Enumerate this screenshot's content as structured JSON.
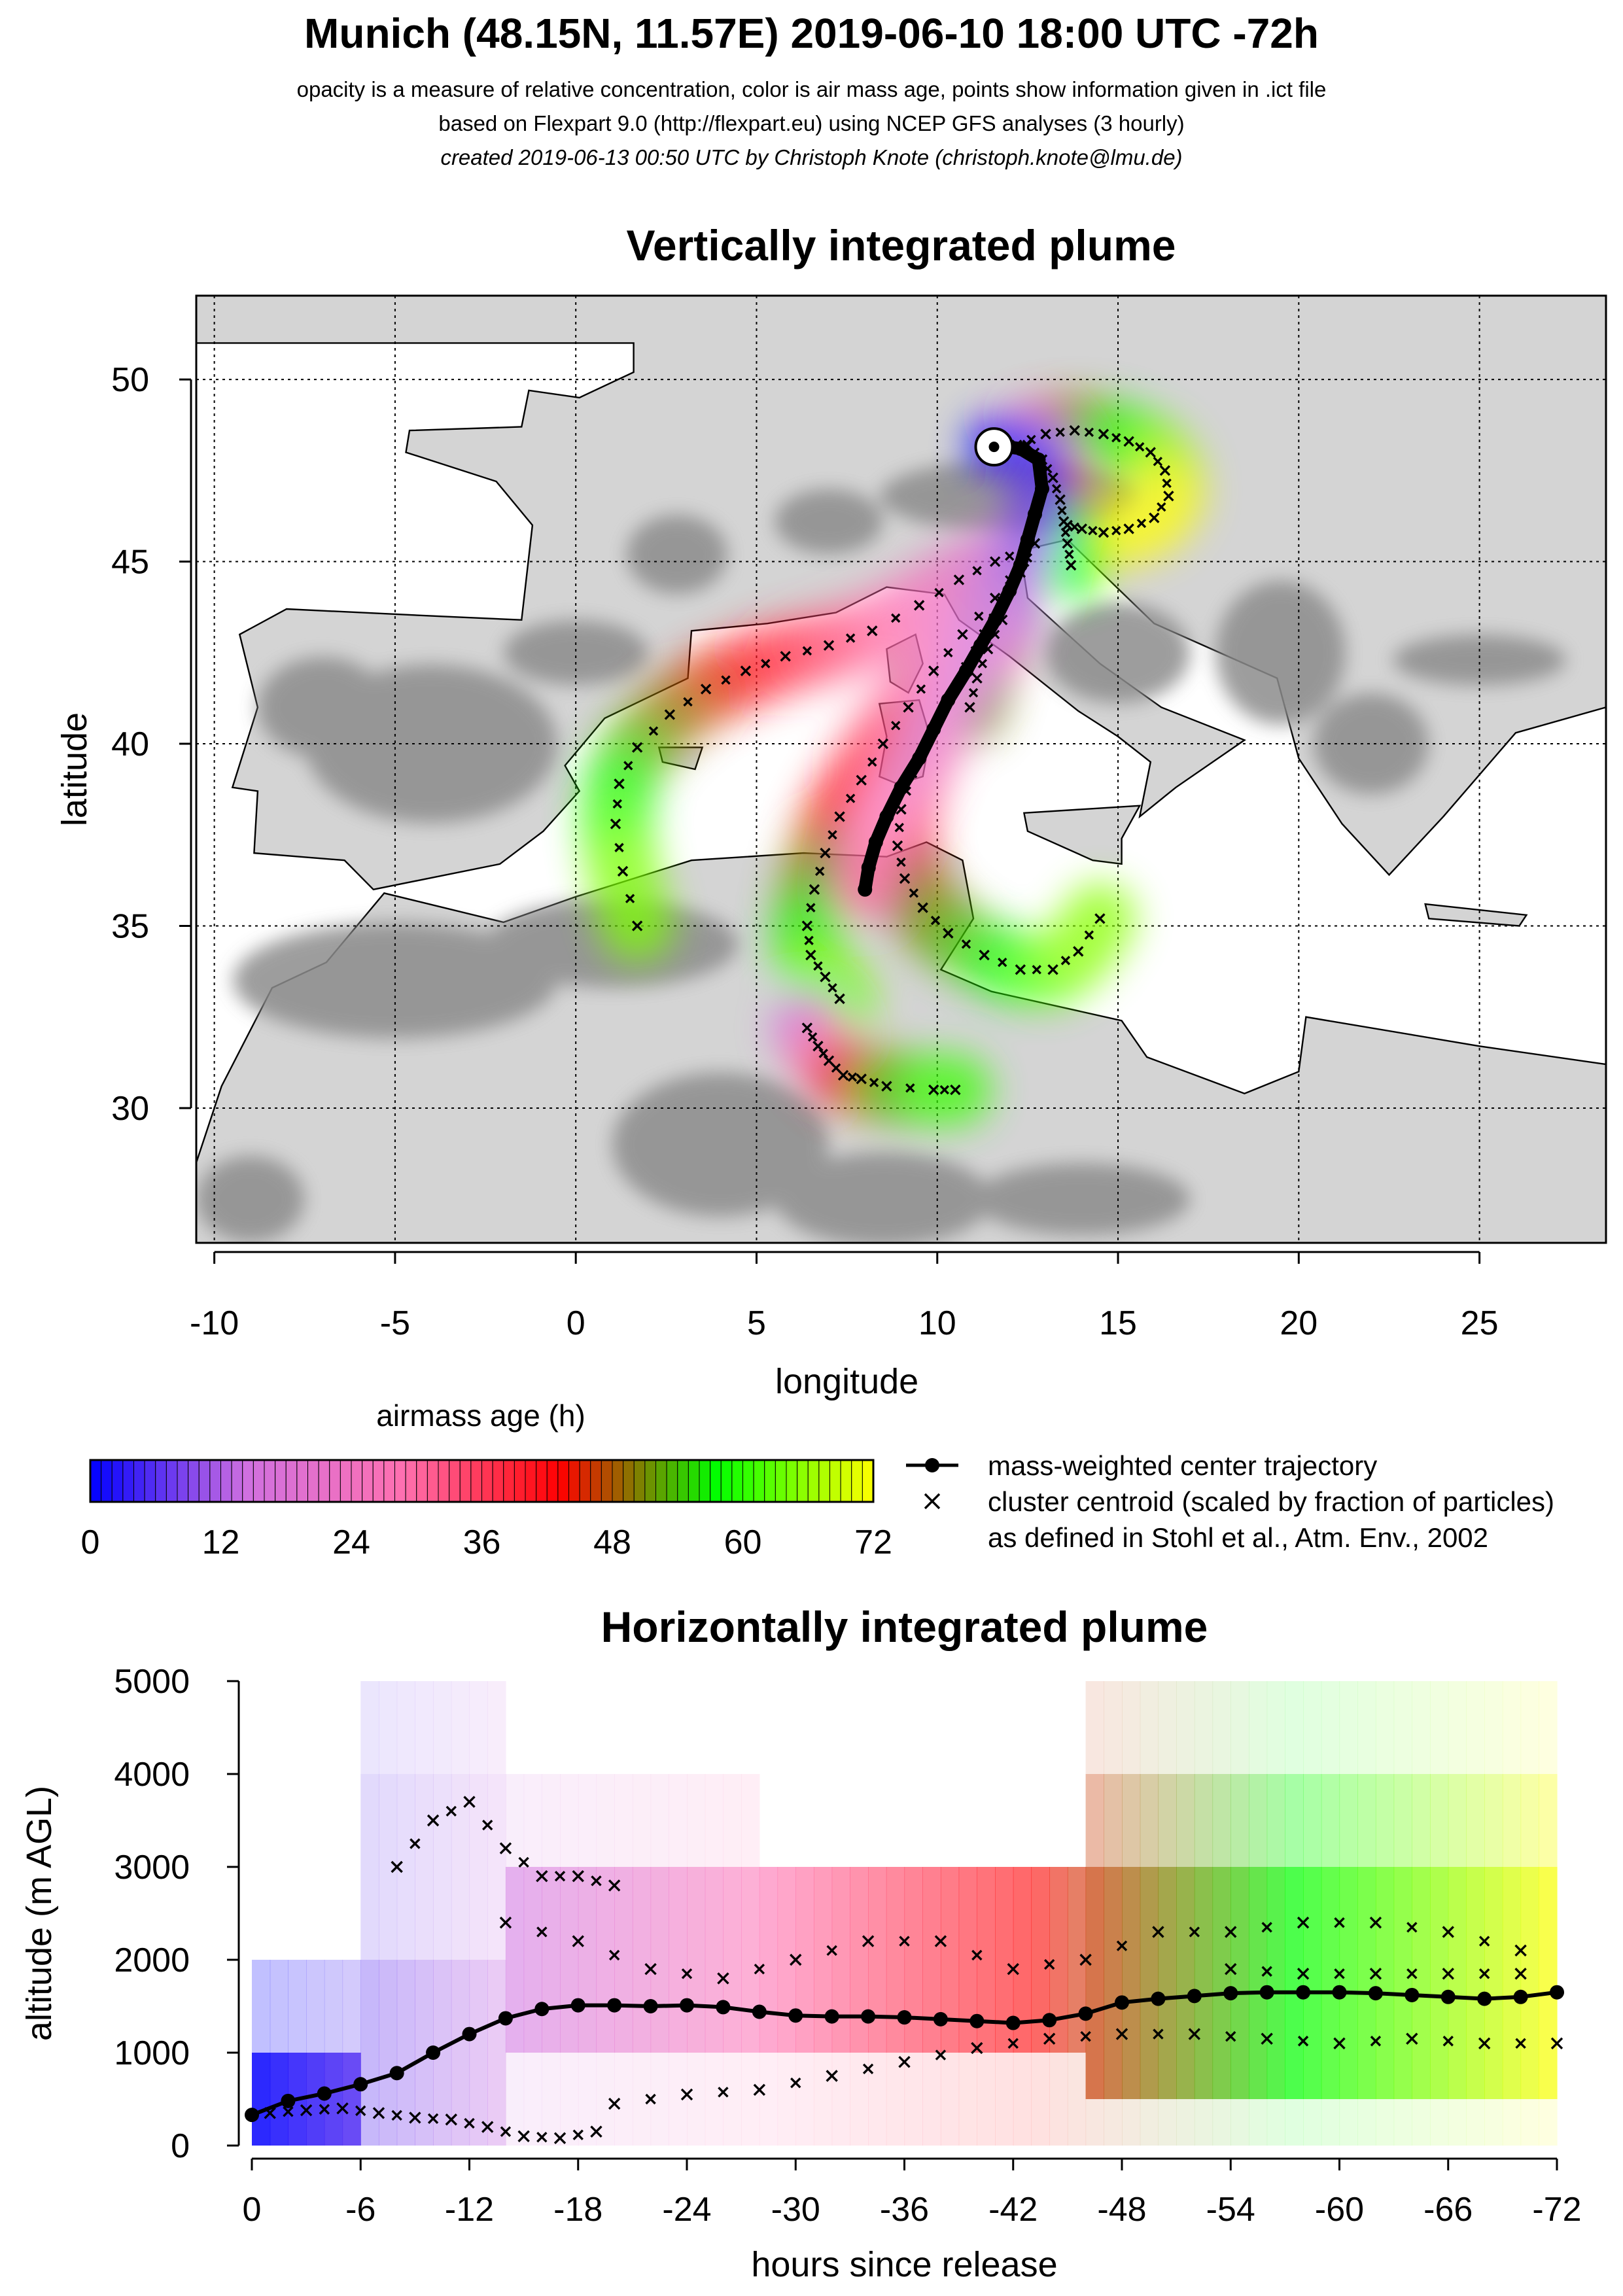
{
  "header": {
    "title": "Munich (48.15N, 11.57E) 2019-06-10 18:00 UTC -72h",
    "sub1": "opacity is a measure of relative concentration, color is air mass age, points show information given in .ict file",
    "sub2": "based on Flexpart 9.0 (http://flexpart.eu) using NCEP GFS analyses (3 hourly)",
    "sub3": "created 2019-06-13 00:50 UTC by Christoph Knote (christoph.knote@lmu.de)"
  },
  "colors": {
    "age_ramp": [
      "#0000ff",
      "#d070e0",
      "#ff70b0",
      "#ff0000",
      "#00ff00",
      "#ffff00"
    ],
    "terrain": "#8c8c8c",
    "sea": "#ffffff"
  },
  "chart_data": [
    {
      "type": "scatter",
      "title": "Vertically integrated plume",
      "xlabel": "longitude",
      "ylabel": "latitude",
      "xlim": [
        -10.5,
        28.5
      ],
      "ylim": [
        26.3,
        52.3
      ],
      "xticks": [
        -10,
        -5,
        0,
        5,
        10,
        15,
        20,
        25
      ],
      "yticks": [
        30,
        35,
        40,
        45,
        50
      ],
      "grid": true,
      "release_site": {
        "lon": 11.57,
        "lat": 48.15
      },
      "series": [
        {
          "name": "mass-weighted center trajectory",
          "lon": [
            11.6,
            12.3,
            12.8,
            12.9,
            12.7,
            12.5,
            12.3,
            12.0,
            11.6,
            11.2,
            10.8,
            10.3,
            9.9,
            9.5,
            9.0,
            8.6,
            8.3,
            8.1,
            8.0
          ],
          "lat": [
            48.2,
            48.1,
            47.8,
            47.0,
            46.3,
            45.6,
            44.9,
            44.2,
            43.4,
            42.7,
            42.0,
            41.2,
            40.4,
            39.6,
            38.8,
            38.0,
            37.3,
            36.6,
            36.0
          ]
        },
        {
          "name": "cluster centroid",
          "tracks": [
            {
              "lon": [
                12.2,
                13.0,
                13.8,
                14.6,
                15.3,
                15.9,
                16.3,
                16.4,
                16.0,
                15.3,
                14.6,
                14.0,
                13.6
              ],
              "lat": [
                48.2,
                48.5,
                48.6,
                48.5,
                48.3,
                48.0,
                47.5,
                46.8,
                46.2,
                45.9,
                45.8,
                45.9,
                46.0
              ]
            },
            {
              "lon": [
                12.4,
                11.6,
                10.6,
                9.5,
                8.2,
                7.0,
                5.8,
                4.7,
                3.6,
                2.6,
                1.7,
                1.2,
                1.1,
                1.3,
                1.7
              ],
              "lat": [
                45.3,
                45.0,
                44.5,
                43.8,
                43.1,
                42.7,
                42.4,
                42.0,
                41.5,
                40.8,
                39.9,
                38.9,
                37.8,
                36.5,
                35.0
              ]
            },
            {
              "lon": [
                12.7,
                12.3,
                11.8,
                11.3,
                10.8,
                10.3,
                9.8,
                9.3,
                9.0,
                8.9,
                9.1,
                9.6,
                10.3,
                11.3,
                12.3,
                13.2,
                13.9,
                14.5
              ],
              "lat": [
                45.5,
                44.7,
                43.9,
                43.0,
                42.1,
                41.2,
                40.2,
                39.2,
                38.2,
                37.2,
                36.3,
                35.5,
                34.8,
                34.2,
                33.8,
                33.8,
                34.3,
                35.2
              ]
            },
            {
              "lon": [
                12.4,
                11.6,
                10.7,
                9.9,
                9.2,
                8.5,
                7.9,
                7.3,
                6.9,
                6.6,
                6.4,
                6.5,
                6.9,
                7.3
              ],
              "lat": [
                45.0,
                44.0,
                43.0,
                42.0,
                41.0,
                40.0,
                39.0,
                38.0,
                37.0,
                36.0,
                35.0,
                34.2,
                33.6,
                33.0
              ]
            },
            {
              "lon": [
                6.4,
                6.7,
                7.0,
                7.4,
                7.9,
                8.6,
                9.9,
                10.5
              ],
              "lat": [
                32.2,
                31.7,
                31.3,
                30.9,
                30.8,
                30.6,
                30.5,
                30.5
              ]
            },
            {
              "lon": [
                11.8,
                11.4,
                11.1,
                10.9
              ],
              "lat": [
                43.4,
                42.6,
                41.8,
                41.0
              ]
            },
            {
              "lon": [
                12.5,
                12.9,
                13.2,
                13.4,
                13.5,
                13.6,
                13.7
              ],
              "lat": [
                48.2,
                47.8,
                47.3,
                46.7,
                46.1,
                45.5,
                44.9
              ]
            }
          ]
        }
      ]
    },
    {
      "type": "table",
      "title": "airmass age (h)",
      "range": [
        0,
        72
      ],
      "ticks": [
        0,
        12,
        24,
        36,
        48,
        60,
        72
      ]
    },
    {
      "type": "line",
      "title": "Horizontally integrated plume",
      "xlabel": "hours since release",
      "ylabel": "altitude (m AGL)",
      "xlim": [
        0,
        -72
      ],
      "ylim": [
        0,
        5000
      ],
      "xticks": [
        0,
        -6,
        -12,
        -18,
        -24,
        -30,
        -36,
        -42,
        -48,
        -54,
        -60,
        -66,
        -72
      ],
      "xticklabels": [
        "0",
        "-6",
        "-12",
        "-18",
        "-24",
        "-30",
        "-36",
        "-42",
        "-48",
        "-54",
        "-60",
        "-66",
        "-72"
      ],
      "yticks": [
        0,
        1000,
        2000,
        3000,
        4000,
        5000
      ],
      "series": [
        {
          "name": "mass-weighted center trajectory",
          "x": [
            0,
            -2,
            -4,
            -6,
            -8,
            -10,
            -12,
            -14,
            -16,
            -18,
            -20,
            -22,
            -24,
            -26,
            -28,
            -30,
            -32,
            -34,
            -36,
            -38,
            -40,
            -42,
            -44,
            -46,
            -48,
            -50,
            -52,
            -54,
            -56,
            -58,
            -60,
            -62,
            -64,
            -66,
            -68,
            -70,
            -72
          ],
          "y": [
            330,
            480,
            560,
            660,
            780,
            1000,
            1200,
            1370,
            1470,
            1510,
            1510,
            1500,
            1510,
            1490,
            1440,
            1400,
            1390,
            1390,
            1380,
            1360,
            1340,
            1320,
            1350,
            1420,
            1540,
            1580,
            1610,
            1640,
            1650,
            1650,
            1650,
            1640,
            1620,
            1600,
            1580,
            1600,
            1650
          ]
        },
        {
          "name": "cluster centroid",
          "tracks": [
            {
              "x": [
                -1,
                -3,
                -5,
                -7,
                -9,
                -11,
                -13,
                -15,
                -17,
                -19
              ],
              "y": [
                350,
                380,
                400,
                350,
                300,
                280,
                200,
                100,
                80,
                150
              ]
            },
            {
              "x": [
                -20,
                -24,
                -28,
                -32,
                -36,
                -40,
                -44,
                -48,
                -52,
                -56,
                -60,
                -64,
                -68,
                -72
              ],
              "y": [
                450,
                550,
                600,
                750,
                900,
                1050,
                1150,
                1200,
                1200,
                1150,
                1100,
                1150,
                1100,
                1100
              ]
            },
            {
              "x": [
                -14,
                -18,
                -22,
                -26,
                -30,
                -34,
                -38,
                -42,
                -46,
                -50,
                -54,
                -58,
                -62,
                -66,
                -70
              ],
              "y": [
                2400,
                2200,
                1900,
                1800,
                2000,
                2200,
                2200,
                1900,
                2000,
                2300,
                2300,
                2400,
                2400,
                2300,
                2100
              ]
            },
            {
              "x": [
                -54,
                -58,
                -62,
                -66,
                -70
              ],
              "y": [
                1900,
                1850,
                1850,
                1850,
                1850
              ]
            },
            {
              "x": [
                -8,
                -10,
                -12,
                -14,
                -16,
                -18,
                -20
              ],
              "y": [
                3000,
                3500,
                3700,
                3200,
                2900,
                2900,
                2800
              ]
            }
          ]
        }
      ]
    }
  ],
  "legend": {
    "items": [
      "mass-weighted center trajectory",
      "cluster centroid (scaled by fraction of particles)",
      "as defined in Stohl et al., Atm. Env., 2002"
    ]
  }
}
